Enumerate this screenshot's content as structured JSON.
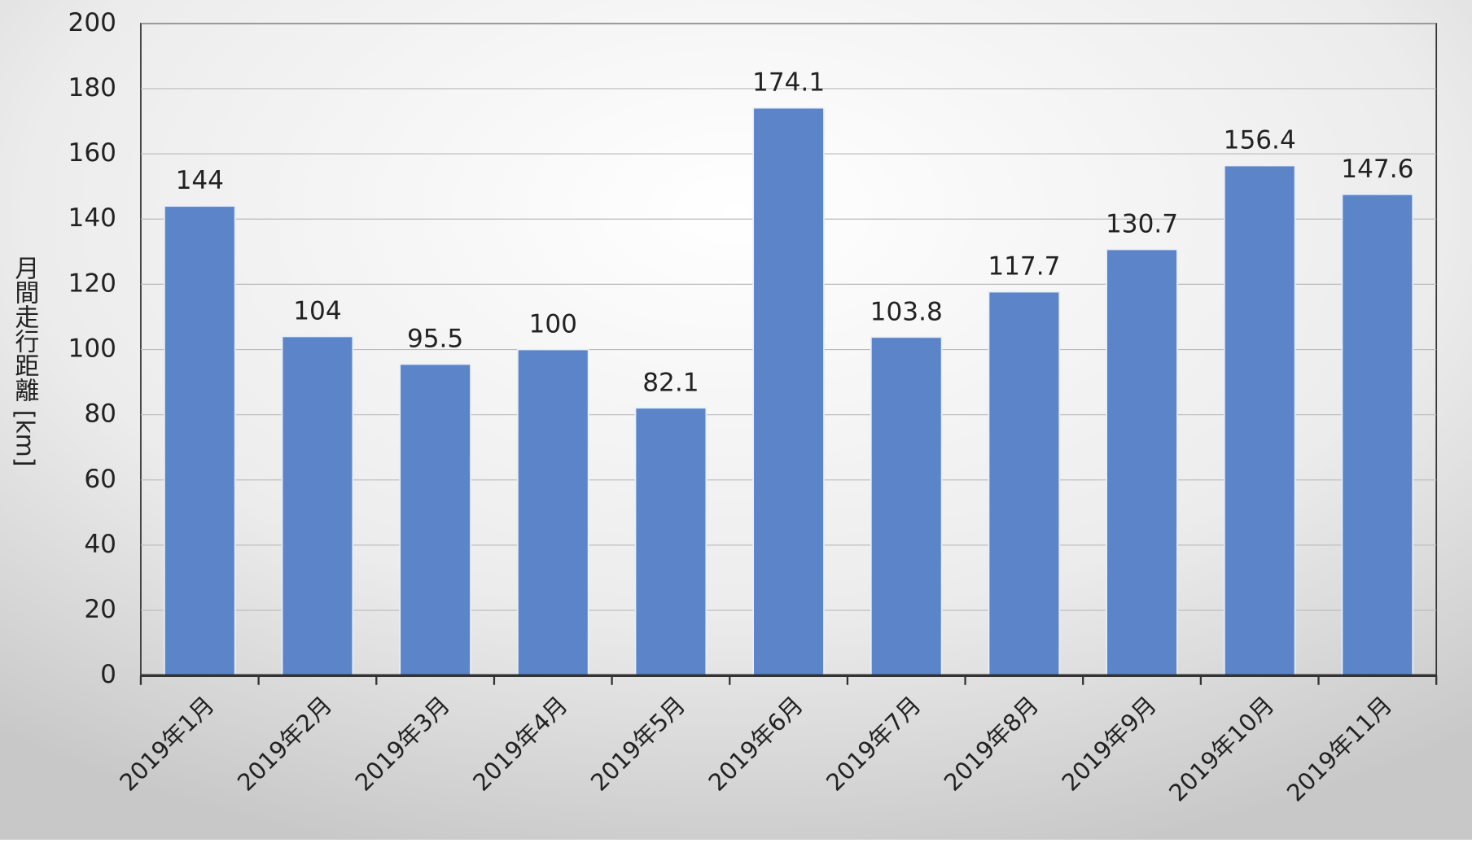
{
  "chart_data": {
    "type": "bar",
    "y_label": "月間走行距離 [km]",
    "categories": [
      "2019年1月",
      "2019年2月",
      "2019年3月",
      "2019年4月",
      "2019年5月",
      "2019年6月",
      "2019年7月",
      "2019年8月",
      "2019年9月",
      "2019年10月",
      "2019年11月"
    ],
    "values": [
      144,
      104,
      95.5,
      100,
      82.1,
      174.1,
      103.8,
      117.7,
      130.7,
      156.4,
      147.6
    ],
    "color": "#5b84c9",
    "ylim": [
      0,
      200
    ],
    "yticks": [
      0,
      20,
      40,
      60,
      80,
      100,
      120,
      140,
      160,
      180,
      200
    ],
    "grid": true
  }
}
